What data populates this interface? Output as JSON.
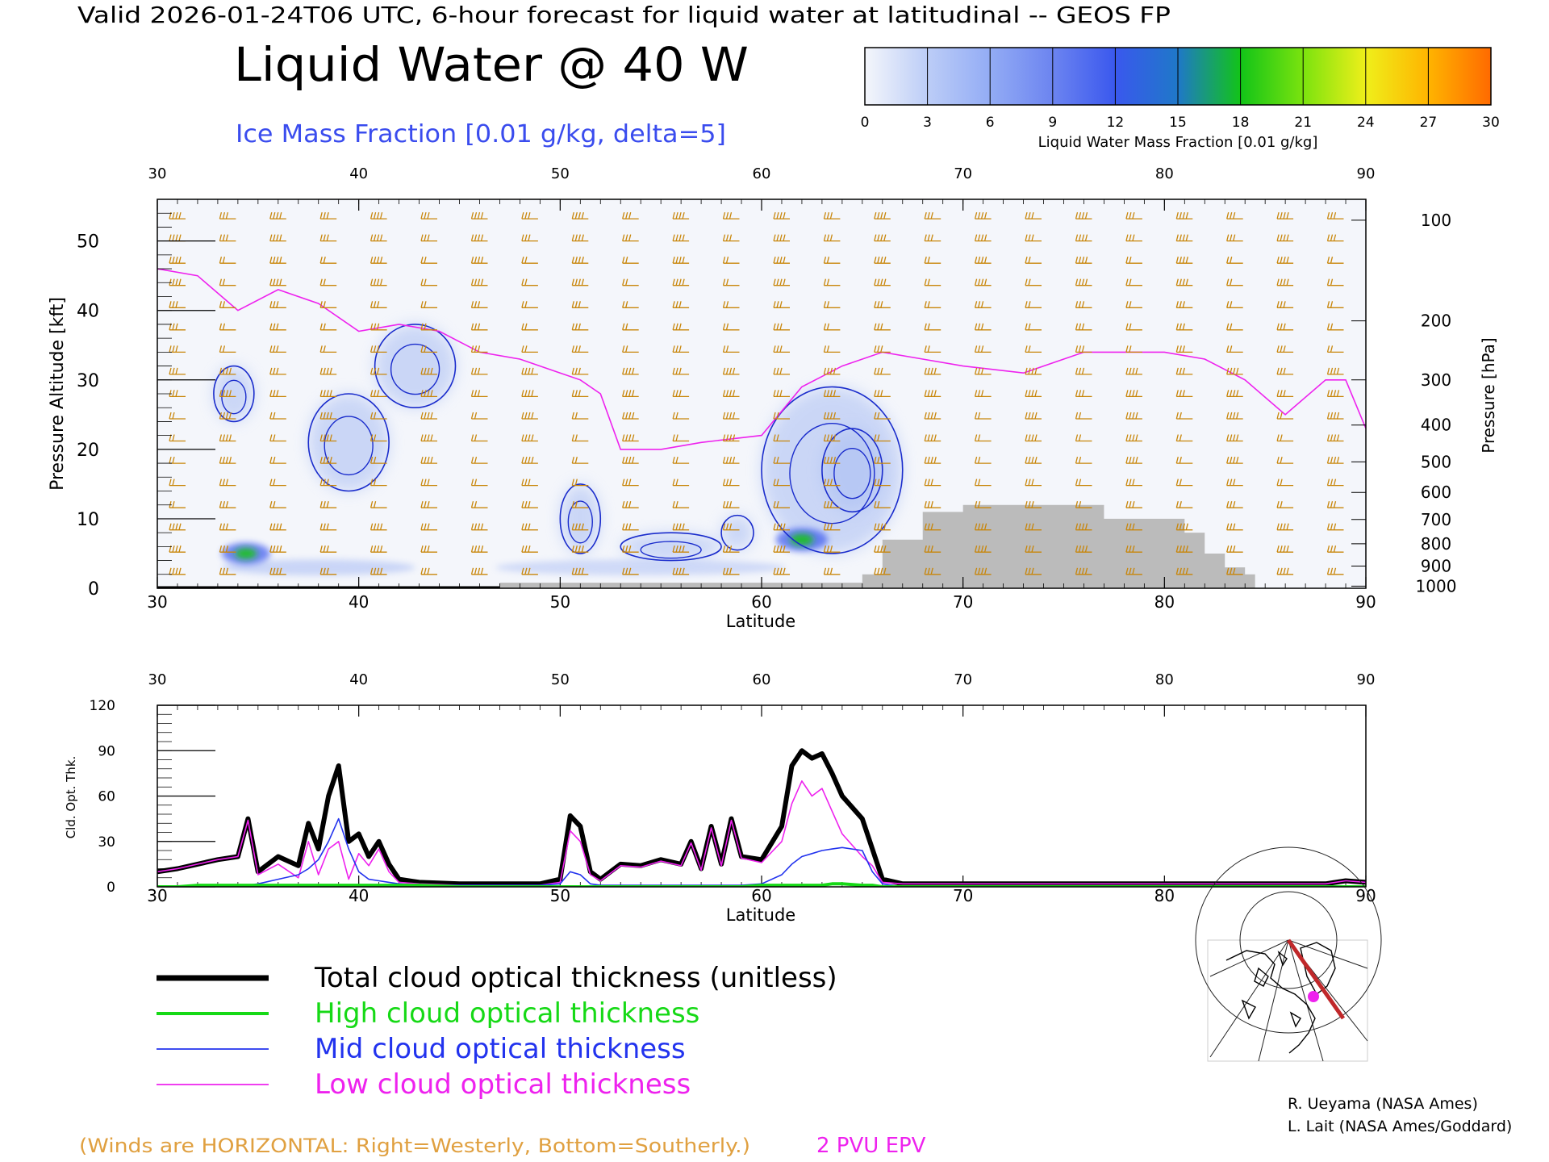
{
  "header": {
    "valid_line": "Valid 2026-01-24T06 UTC, 6-hour forecast for liquid water at latitudinal -- GEOS FP",
    "title": "Liquid Water @ 40 W",
    "subtitle": "Ice Mass Fraction [0.01 g/kg, delta=5]"
  },
  "colorbar": {
    "ticks": [
      "0",
      "3",
      "6",
      "9",
      "12",
      "15",
      "18",
      "21",
      "24",
      "27",
      "30"
    ],
    "label": "Liquid Water Mass Fraction [0.01 g/kg]",
    "colors": [
      "#f4f6fb",
      "#bccdf7",
      "#93acf5",
      "#6c84f0",
      "#3a58ee",
      "#1f78c8",
      "#12c418",
      "#7be30e",
      "#efef1a",
      "#ffb400",
      "#ff6a00"
    ]
  },
  "footer": {
    "winds_note": "(Winds are HORIZONTAL: Right=Westerly, Bottom=Southerly.)",
    "pvu_label": "2 PVU EPV",
    "credit1": "R. Ueyama (NASA Ames)",
    "credit2": "L. Lait (NASA Ames/Goddard)"
  },
  "legend": [
    {
      "label": "Total cloud optical thickness (unitless)",
      "color": "#000000"
    },
    {
      "label": "High cloud optical thickness",
      "color": "#16d916"
    },
    {
      "label": "Mid cloud optical thickness",
      "color": "#2233ee"
    },
    {
      "label": "Low cloud optical thickness",
      "color": "#ee22ee"
    }
  ],
  "colors": {
    "axis": "#000000",
    "wind": "#c8860a",
    "pvu": "#ee22ee",
    "ice_contour": "#1a2ccc",
    "terrain": "#bbbbbb",
    "ice_text": "#3a4cee",
    "winds_text": "#e0a040"
  },
  "chart_data": [
    {
      "type": "contour",
      "title": "Liquid Water @ 40 W",
      "xlabel": "Latitude",
      "ylabel": "Pressure Altitude [kft]",
      "ylabel_right": "Pressure [hPa]",
      "xlim": [
        30,
        90
      ],
      "ylim": [
        0,
        56
      ],
      "x_ticks": [
        "30",
        "40",
        "50",
        "60",
        "70",
        "80",
        "90"
      ],
      "y_ticks": [
        "0",
        "10",
        "20",
        "30",
        "40",
        "50"
      ],
      "pressure_ticks": [
        {
          "label": "100",
          "alt": 53.0
        },
        {
          "label": "200",
          "alt": 38.5
        },
        {
          "label": "300",
          "alt": 30.0
        },
        {
          "label": "400",
          "alt": 23.5
        },
        {
          "label": "500",
          "alt": 18.2
        },
        {
          "label": "600",
          "alt": 13.8
        },
        {
          "label": "700",
          "alt": 9.9
        },
        {
          "label": "800",
          "alt": 6.4
        },
        {
          "label": "900",
          "alt": 3.2
        },
        {
          "label": "1000",
          "alt": 0.3
        }
      ],
      "pvu_2_line": [
        [
          30,
          46
        ],
        [
          32,
          45
        ],
        [
          34,
          40
        ],
        [
          36,
          43
        ],
        [
          38,
          41
        ],
        [
          40,
          37
        ],
        [
          42,
          38
        ],
        [
          44,
          37
        ],
        [
          46,
          34
        ],
        [
          48,
          33
        ],
        [
          50,
          31
        ],
        [
          51,
          30
        ],
        [
          52,
          28
        ],
        [
          53,
          20
        ],
        [
          55,
          20
        ],
        [
          57,
          21
        ],
        [
          60,
          22
        ],
        [
          62,
          29
        ],
        [
          64,
          32
        ],
        [
          66,
          34
        ],
        [
          68,
          33
        ],
        [
          70,
          32
        ],
        [
          73,
          31
        ],
        [
          76,
          34
        ],
        [
          80,
          34
        ],
        [
          82,
          33
        ],
        [
          84,
          30
        ],
        [
          86,
          25
        ],
        [
          88,
          30
        ],
        [
          89,
          30
        ],
        [
          90,
          23
        ]
      ],
      "terrain_profile": [
        [
          47,
          0.8
        ],
        [
          52,
          0.8
        ],
        [
          60,
          0.8
        ],
        [
          64,
          0.8
        ],
        [
          65,
          2
        ],
        [
          66,
          7
        ],
        [
          68,
          11
        ],
        [
          70,
          12
        ],
        [
          75,
          12
        ],
        [
          77,
          10
        ],
        [
          79,
          10
        ],
        [
          81,
          8
        ],
        [
          82,
          5
        ],
        [
          83,
          3
        ],
        [
          84,
          2
        ],
        [
          84.5,
          0
        ]
      ],
      "ice_mass_contours": [
        {
          "lat_center": 33.8,
          "alt_center": 28,
          "lat_radius": 1.0,
          "alt_radius": 4
        },
        {
          "lat_center": 39.5,
          "alt_center": 21,
          "lat_radius": 2.0,
          "alt_radius": 7
        },
        {
          "lat_center": 42.8,
          "alt_center": 32,
          "lat_radius": 2.0,
          "alt_radius": 6
        },
        {
          "lat_center": 51.0,
          "alt_center": 10,
          "lat_radius": 1.0,
          "alt_radius": 5
        },
        {
          "lat_center": 55.5,
          "alt_center": 6,
          "lat_radius": 2.5,
          "alt_radius": 2
        },
        {
          "lat_center": 58.8,
          "alt_center": 8,
          "lat_radius": 0.8,
          "alt_radius": 2.5
        },
        {
          "lat_center": 63.5,
          "alt_center": 17,
          "lat_radius": 3.5,
          "alt_radius": 12
        },
        {
          "lat_center": 64.5,
          "alt_center": 17,
          "lat_radius": 1.5,
          "alt_radius": 6
        }
      ],
      "liquid_water_maxima": [
        {
          "lat": 34.4,
          "alt": 5,
          "value": 15
        },
        {
          "lat": 62.0,
          "alt": 7,
          "value": 16
        }
      ]
    },
    {
      "type": "line",
      "xlabel": "Latitude",
      "ylabel": "Cld. Opt. Thk.",
      "xlim": [
        30,
        90
      ],
      "ylim": [
        0,
        120
      ],
      "x_ticks": [
        "30",
        "40",
        "50",
        "60",
        "70",
        "80",
        "90"
      ],
      "y_ticks": [
        "0",
        "30",
        "60",
        "90",
        "120"
      ],
      "x": [
        30,
        31,
        32,
        33,
        34,
        34.5,
        35,
        36,
        37,
        37.5,
        38,
        38.5,
        39,
        39.5,
        40,
        40.5,
        41,
        41.5,
        42,
        43,
        45,
        48,
        49,
        50,
        50.5,
        51,
        51.5,
        52,
        53,
        54,
        55,
        56,
        56.5,
        57,
        57.5,
        58,
        58.5,
        59,
        60,
        61,
        61.5,
        62,
        62.5,
        63,
        63.5,
        64,
        65,
        65.5,
        66,
        67,
        70,
        80,
        88,
        89,
        90
      ],
      "series": [
        {
          "name": "Total cloud optical thickness (unitless)",
          "values": [
            10,
            12,
            15,
            18,
            20,
            45,
            10,
            20,
            14,
            42,
            25,
            60,
            80,
            30,
            35,
            20,
            30,
            15,
            5,
            3,
            2,
            2,
            2,
            5,
            47,
            40,
            10,
            5,
            15,
            14,
            18,
            15,
            30,
            12,
            40,
            15,
            45,
            20,
            18,
            40,
            80,
            90,
            85,
            88,
            75,
            60,
            45,
            25,
            5,
            2,
            2,
            2,
            2,
            4,
            3
          ]
        },
        {
          "name": "High cloud optical thickness",
          "values": [
            0,
            0,
            1,
            1,
            1,
            1,
            1,
            1,
            1,
            1,
            1,
            1,
            1,
            1,
            1,
            1,
            1,
            1,
            1,
            1,
            0,
            0,
            0,
            0,
            0,
            0,
            0,
            0,
            0,
            0,
            0,
            0,
            0,
            0,
            0,
            0,
            0,
            0,
            1,
            1,
            1,
            1,
            1,
            1,
            2,
            2,
            1,
            1,
            0,
            0,
            0,
            0,
            0,
            0,
            0
          ]
        },
        {
          "name": "Mid cloud optical thickness",
          "values": [
            0,
            0,
            0,
            0,
            0,
            1,
            2,
            5,
            8,
            12,
            18,
            30,
            45,
            25,
            10,
            5,
            4,
            3,
            2,
            1,
            1,
            1,
            1,
            2,
            10,
            8,
            2,
            1,
            1,
            1,
            1,
            1,
            1,
            1,
            1,
            1,
            1,
            1,
            2,
            8,
            15,
            20,
            22,
            24,
            25,
            26,
            24,
            10,
            2,
            0,
            0,
            0,
            0,
            0,
            0
          ]
        },
        {
          "name": "Low cloud optical thickness",
          "values": [
            10,
            12,
            15,
            18,
            20,
            44,
            8,
            15,
            6,
            30,
            8,
            25,
            30,
            5,
            22,
            14,
            25,
            10,
            3,
            2,
            1,
            1,
            1,
            3,
            37,
            30,
            8,
            4,
            14,
            13,
            17,
            14,
            29,
            11,
            39,
            14,
            44,
            19,
            16,
            30,
            55,
            70,
            60,
            65,
            50,
            35,
            20,
            14,
            3,
            2,
            2,
            2,
            2,
            4,
            3
          ]
        }
      ]
    }
  ]
}
